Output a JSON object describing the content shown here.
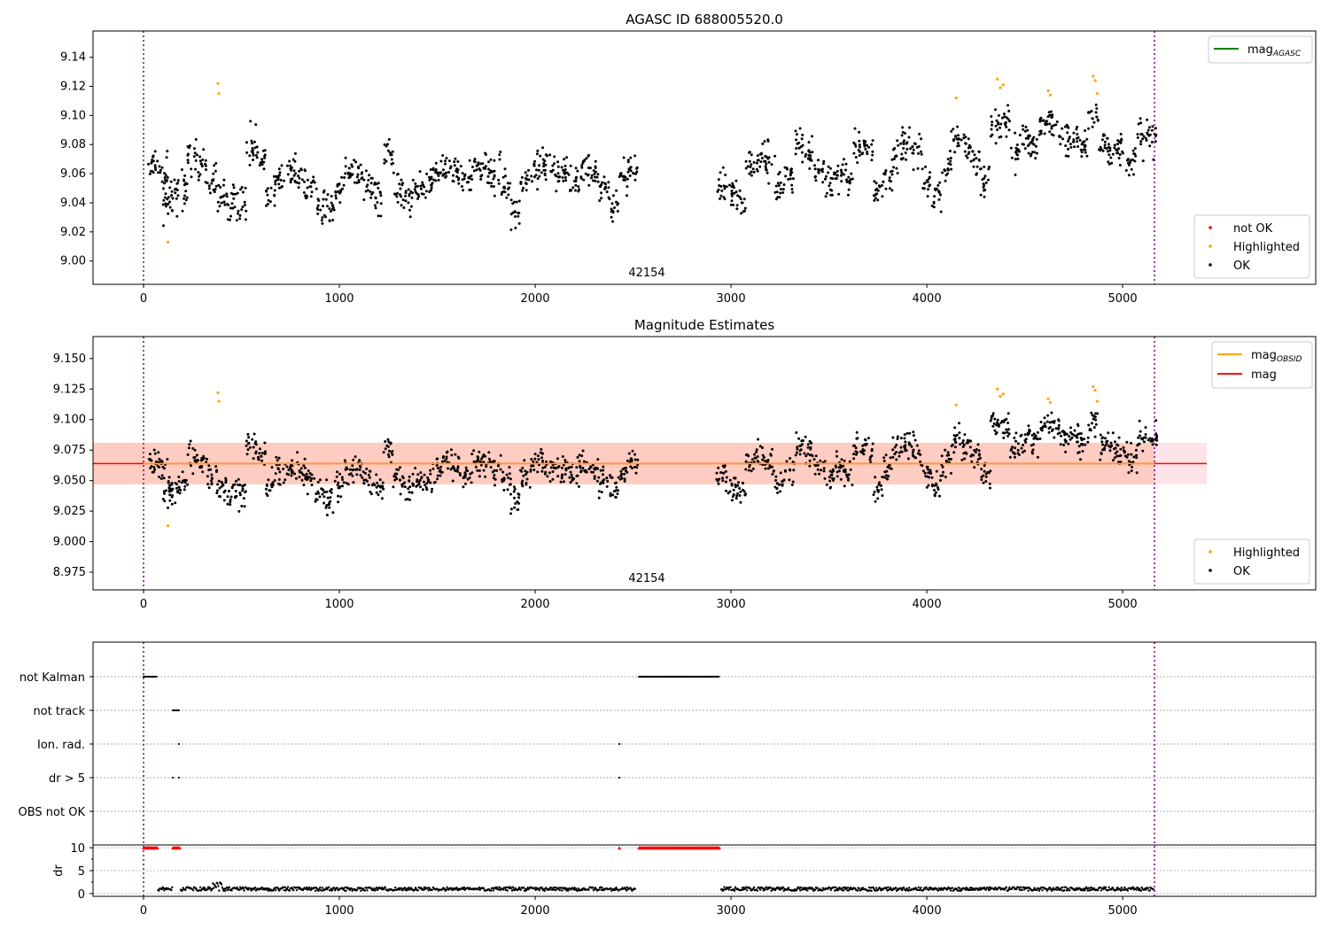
{
  "chart_data": [
    {
      "type": "scatter",
      "title": "AGASC ID 688005520.0",
      "xlim": [
        -258,
        5986
      ],
      "ylim": [
        8.984,
        9.158
      ],
      "yticks": [
        "9.00",
        "9.02",
        "9.04",
        "9.06",
        "9.08",
        "9.10",
        "9.12",
        "9.14"
      ],
      "xticks": [
        "0",
        "1000",
        "2000",
        "3000",
        "4000",
        "5000"
      ],
      "obsid_label": "42154",
      "legend_lines": [
        {
          "label": "mag",
          "sub": "AGASC",
          "color": "#008000"
        }
      ],
      "legend_points": [
        {
          "label": "not OK",
          "color": "#ff0000"
        },
        {
          "label": "Highlighted",
          "color": "#ffa500"
        },
        {
          "label": "OK",
          "color": "#000000"
        }
      ]
    },
    {
      "type": "scatter",
      "title": "Magnitude Estimates",
      "xlim": [
        -258,
        5986
      ],
      "ylim": [
        8.9605,
        9.168
      ],
      "yticks": [
        "8.975",
        "9.000",
        "9.025",
        "9.050",
        "9.075",
        "9.100",
        "9.125",
        "9.150"
      ],
      "xticks": [
        "0",
        "1000",
        "2000",
        "3000",
        "4000",
        "5000"
      ],
      "obsid_label": "42154",
      "mag": 9.064,
      "band": [
        9.047,
        9.081
      ],
      "legend_lines": [
        {
          "label": "mag",
          "sub": "OBSID",
          "color": "#ffa500"
        },
        {
          "label": "mag",
          "sub": "",
          "color": "#ff0000"
        }
      ],
      "legend_points": [
        {
          "label": "Highlighted",
          "color": "#ffa500"
        },
        {
          "label": "OK",
          "color": "#000000"
        }
      ]
    },
    {
      "type": "scatter",
      "title": "",
      "flags": [
        "not Kalman",
        "not track",
        "Ion. rad.",
        "dr > 5",
        "OBS not OK"
      ],
      "flag_ranges": {
        "not Kalman": [
          [
            0,
            70
          ],
          [
            2530,
            2940
          ]
        ],
        "not track": [
          [
            150,
            185
          ]
        ],
        "Ion. rad.": [
          [
            180,
            180
          ],
          [
            2430,
            2430
          ]
        ],
        "dr > 5": [
          [
            150,
            150
          ],
          [
            180,
            180
          ],
          [
            2430,
            2430
          ]
        ],
        "OBS not OK": []
      },
      "dr_ylabel": "dr",
      "dr_yticks": [
        "0",
        "5",
        "10"
      ],
      "dr_typical": 1.0,
      "dr_clipped": 10,
      "xticks": [
        "0",
        "1000",
        "2000",
        "3000",
        "4000",
        "5000"
      ]
    }
  ],
  "mag_series": {
    "x": [
      50,
      100,
      125,
      150,
      200,
      250,
      300,
      350,
      400,
      450,
      500,
      550,
      600,
      650,
      700,
      750,
      800,
      850,
      900,
      950,
      1000,
      1050,
      1100,
      1150,
      1200,
      1250,
      1300,
      1350,
      1400,
      1450,
      1500,
      1550,
      1600,
      1650,
      1700,
      1750,
      1800,
      1850,
      1900,
      1950,
      2000,
      2050,
      2100,
      2150,
      2200,
      2250,
      2300,
      2350,
      2400,
      2450,
      2500,
      2950,
      3000,
      3050,
      3100,
      3150,
      3200,
      3250,
      3300,
      3350,
      3400,
      3450,
      3500,
      3550,
      3600,
      3650,
      3700,
      3750,
      3800,
      3850,
      3900,
      3950,
      4000,
      4050,
      4100,
      4150,
      4200,
      4250,
      4300,
      4350,
      4400,
      4450,
      4500,
      4550,
      4600,
      4650,
      4700,
      4750,
      4800,
      4850,
      4900,
      4950,
      5000,
      5050,
      5100,
      5150
    ],
    "y": [
      9.065,
      9.06,
      9.04,
      9.045,
      9.05,
      9.07,
      9.065,
      9.055,
      9.045,
      9.04,
      9.04,
      9.08,
      9.07,
      9.045,
      9.055,
      9.06,
      9.06,
      9.05,
      9.04,
      9.035,
      9.045,
      9.06,
      9.06,
      9.05,
      9.045,
      9.075,
      9.05,
      9.045,
      9.05,
      9.05,
      9.06,
      9.065,
      9.06,
      9.055,
      9.065,
      9.065,
      9.06,
      9.05,
      9.035,
      9.055,
      9.065,
      9.065,
      9.06,
      9.06,
      9.055,
      9.065,
      9.06,
      9.05,
      9.04,
      9.055,
      9.065,
      9.055,
      9.045,
      9.04,
      9.065,
      9.07,
      9.065,
      9.05,
      9.06,
      9.08,
      9.075,
      9.06,
      9.055,
      9.06,
      9.055,
      9.075,
      9.075,
      9.045,
      9.06,
      9.075,
      9.08,
      9.075,
      9.055,
      9.045,
      9.065,
      9.085,
      9.08,
      9.07,
      9.055,
      9.095,
      9.095,
      9.075,
      9.085,
      9.08,
      9.095,
      9.095,
      9.085,
      9.085,
      9.08,
      9.1,
      9.08,
      9.075,
      9.075,
      9.065,
      9.085,
      9.085
    ]
  },
  "highlighted": {
    "x": [
      125,
      380,
      385,
      4150,
      4360,
      4375,
      4390,
      4620,
      4630,
      4850,
      4860,
      4870
    ],
    "y": [
      9.013,
      9.122,
      9.115,
      9.112,
      9.125,
      9.119,
      9.121,
      9.117,
      9.114,
      9.127,
      9.124,
      9.115
    ]
  },
  "obs_range": [
    0,
    5163
  ],
  "colors": {
    "ok": "#000000",
    "highlighted": "#ffa500",
    "not_ok": "#ff0000",
    "vline": "#800080",
    "band_pink": "#ffc0cb",
    "band_orange": "#ffa07a"
  }
}
